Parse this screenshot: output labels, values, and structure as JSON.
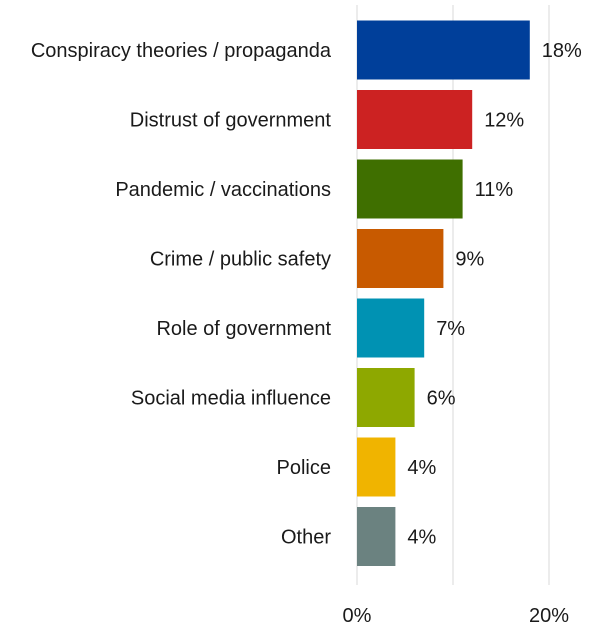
{
  "chart_data": {
    "type": "bar",
    "orientation": "horizontal",
    "categories": [
      "Conspiracy theories / propaganda",
      "Distrust of government",
      "Pandemic / vaccinations",
      "Crime / public safety",
      "Role of government",
      "Social media influence",
      "Police",
      "Other"
    ],
    "values": [
      18,
      12,
      11,
      9,
      7,
      6,
      4,
      4
    ],
    "value_labels": [
      "18%",
      "12%",
      "11%",
      "9%",
      "7%",
      "6%",
      "4%",
      "4%"
    ],
    "colors": [
      "#003f9a",
      "#cc2222",
      "#3f6f00",
      "#c85a00",
      "#0092b3",
      "#8ea800",
      "#f0b400",
      "#6b8280"
    ],
    "xlim": [
      0,
      20
    ],
    "xticks": [
      0,
      20
    ],
    "xtick_labels": [
      "0%",
      "20%"
    ],
    "grid": true,
    "title": "",
    "xlabel": "",
    "ylabel": ""
  }
}
